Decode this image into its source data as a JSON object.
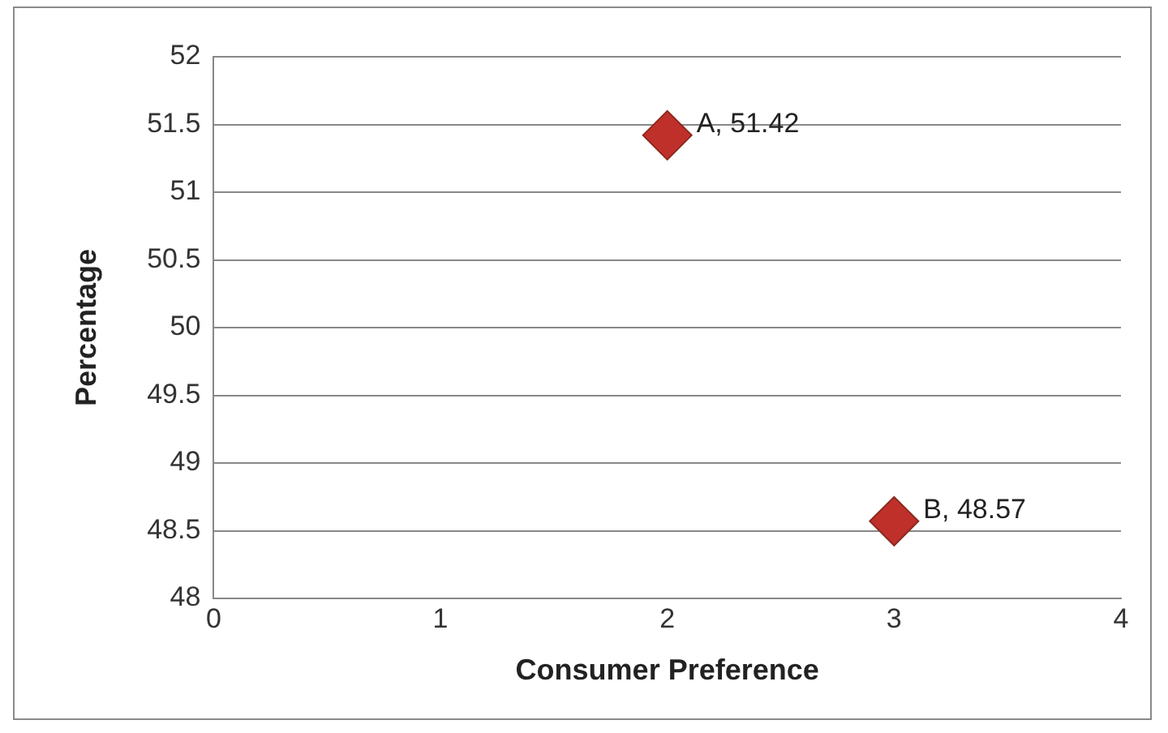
{
  "chart_data": {
    "type": "scatter",
    "xlabel": "Consumer Preference",
    "ylabel": "Percentage",
    "x": [
      2,
      3
    ],
    "values": [
      51.42,
      48.57
    ],
    "color": "#c0302a",
    "value_labels": [
      "A, 51.42",
      "B, 48.57"
    ],
    "xlim": [
      0,
      4
    ],
    "xticks": [
      0,
      1,
      2,
      3,
      4
    ],
    "ylim": [
      48,
      52
    ],
    "yticks": [
      48,
      48.5,
      49,
      49.5,
      50,
      50.5,
      51,
      51.5,
      52
    ],
    "grid": "y",
    "marker": "diamond"
  }
}
